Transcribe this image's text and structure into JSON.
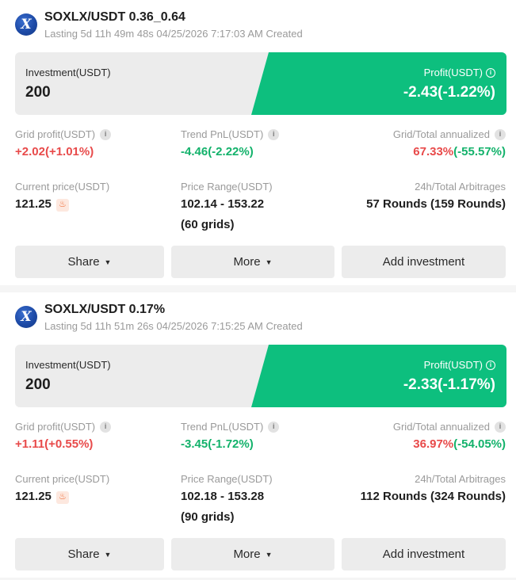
{
  "icon_names": {
    "logo": "soxl-coin-logo",
    "info": "info-icon",
    "hot": "flame-icon",
    "caret": "caret-down-icon"
  },
  "colors": {
    "profit_green": "#0dbf7e",
    "red": "#e84a4a",
    "green": "#13b26b"
  },
  "cards": [
    {
      "logo_letter": "X",
      "title": "SOXLX/USDT 0.36_0.64",
      "subtitle": "Lasting 5d 11h 49m 48s 04/25/2026 7:17:03 AM Created",
      "investment_label": "Investment(USDT)",
      "investment_value": "200",
      "profit_label": "Profit(USDT)",
      "profit_value": "-2.43(-1.22%)",
      "grid_profit_label": "Grid profit(USDT)",
      "grid_profit_value": "+2.02(+1.01%)",
      "trend_pnl_label": "Trend PnL(USDT)",
      "trend_pnl_value": "-4.46(-2.22%)",
      "annualized_label": "Grid/Total annualized",
      "annualized_red": "67.33%",
      "annualized_green": "(-55.57%)",
      "current_price_label": "Current price(USDT)",
      "current_price_value": "121.25",
      "price_range_label": "Price Range(USDT)",
      "price_range_value": "102.14 - 153.22",
      "price_range_grids": "(60 grids)",
      "arbitrages_label": "24h/Total Arbitrages",
      "arbitrages_value": "57 Rounds (159 Rounds)",
      "share_label": "Share",
      "more_label": "More",
      "add_label": "Add investment"
    },
    {
      "logo_letter": "X",
      "title": "SOXLX/USDT 0.17%",
      "subtitle": "Lasting 5d 11h 51m 26s 04/25/2026 7:15:25 AM Created",
      "investment_label": "Investment(USDT)",
      "investment_value": "200",
      "profit_label": "Profit(USDT)",
      "profit_value": "-2.33(-1.17%)",
      "grid_profit_label": "Grid profit(USDT)",
      "grid_profit_value": "+1.11(+0.55%)",
      "trend_pnl_label": "Trend PnL(USDT)",
      "trend_pnl_value": "-3.45(-1.72%)",
      "annualized_label": "Grid/Total annualized",
      "annualized_red": "36.97%",
      "annualized_green": "(-54.05%)",
      "current_price_label": "Current price(USDT)",
      "current_price_value": "121.25",
      "price_range_label": "Price Range(USDT)",
      "price_range_value": "102.18 - 153.28",
      "price_range_grids": "(90 grids)",
      "arbitrages_label": "24h/Total Arbitrages",
      "arbitrages_value": "112 Rounds (324 Rounds)",
      "share_label": "Share",
      "more_label": "More",
      "add_label": "Add investment"
    }
  ]
}
